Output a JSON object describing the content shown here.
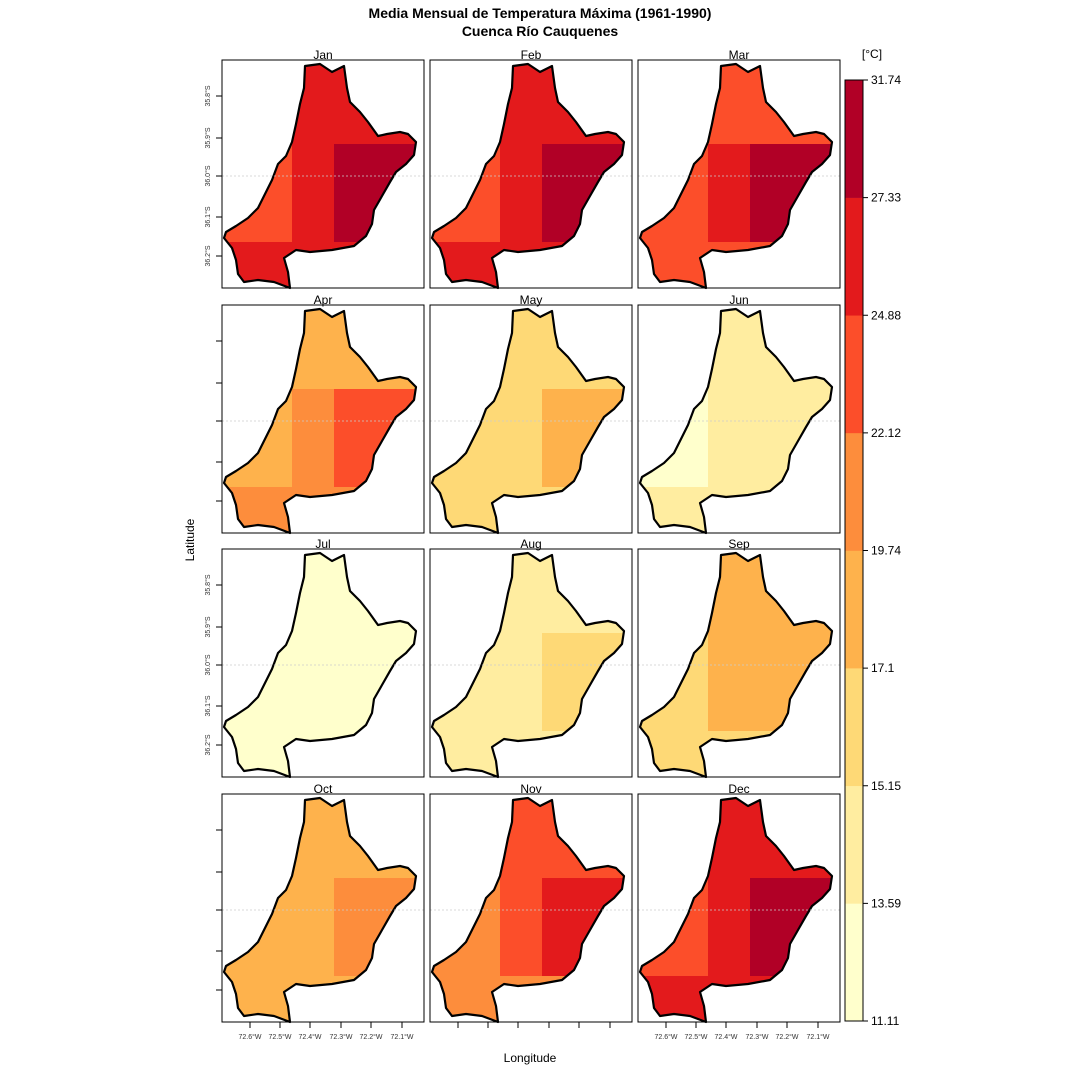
{
  "chart_data": {
    "type": "heatmap",
    "title": "Media Mensual de Temperatura Máxima (1961-1990)",
    "subtitle": "Cuenca Río Cauquenes",
    "xlabel": "Longitude",
    "ylabel": "Latitude",
    "colorbar": {
      "unit": "[°C]",
      "breaks": [
        11.11,
        13.59,
        15.15,
        17.1,
        19.74,
        22.12,
        24.88,
        27.33,
        31.74
      ],
      "break_labels": [
        "11.11",
        "13.59",
        "15.15",
        "17.1",
        "19.74",
        "22.12",
        "24.88",
        "27.33",
        "31.74"
      ],
      "colors": [
        "#FFFFCC",
        "#FFEDA0",
        "#FED976",
        "#FEB24C",
        "#FD8D3C",
        "#FC4E2A",
        "#E31A1C",
        "#B10026"
      ]
    },
    "x_ticks": [
      "72.6°W",
      "72.5°W",
      "72.4°W",
      "72.3°W",
      "72.2°W",
      "72.1°W"
    ],
    "y_ticks": [
      "35.8°S",
      "35.9°S",
      "36.0°S",
      "36.1°S",
      "36.2°S"
    ],
    "panels": [
      {
        "month": "Jan",
        "regions": {
          "n": 6,
          "w": 5,
          "c": 6,
          "e": 7,
          "s": 6
        }
      },
      {
        "month": "Feb",
        "regions": {
          "n": 6,
          "w": 5,
          "c": 6,
          "e": 7,
          "s": 6
        }
      },
      {
        "month": "Mar",
        "regions": {
          "n": 5,
          "w": 5,
          "c": 6,
          "e": 7,
          "s": 5
        }
      },
      {
        "month": "Apr",
        "regions": {
          "n": 3,
          "w": 3,
          "c": 4,
          "e": 5,
          "s": 4
        }
      },
      {
        "month": "May",
        "regions": {
          "n": 2,
          "w": 2,
          "c": 2,
          "e": 3,
          "s": 2
        }
      },
      {
        "month": "Jun",
        "regions": {
          "n": 1,
          "w": 0,
          "c": 1,
          "e": 1,
          "s": 1
        }
      },
      {
        "month": "Jul",
        "regions": {
          "n": 0,
          "w": 0,
          "c": 0,
          "e": 0,
          "s": 0
        }
      },
      {
        "month": "Aug",
        "regions": {
          "n": 1,
          "w": 1,
          "c": 1,
          "e": 2,
          "s": 1
        }
      },
      {
        "month": "Sep",
        "regions": {
          "n": 3,
          "w": 2,
          "c": 3,
          "e": 3,
          "s": 2
        }
      },
      {
        "month": "Oct",
        "regions": {
          "n": 3,
          "w": 3,
          "c": 3,
          "e": 4,
          "s": 3
        }
      },
      {
        "month": "Nov",
        "regions": {
          "n": 5,
          "w": 4,
          "c": 5,
          "e": 6,
          "s": 4
        }
      },
      {
        "month": "Dec",
        "regions": {
          "n": 6,
          "w": 5,
          "c": 6,
          "e": 7,
          "s": 6
        }
      }
    ]
  }
}
